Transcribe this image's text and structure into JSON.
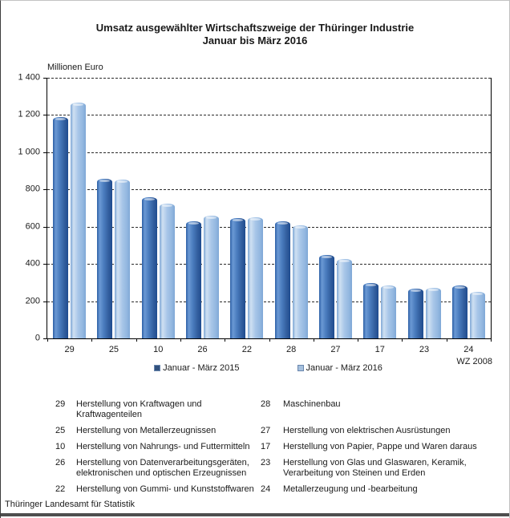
{
  "title": {
    "line1": "Umsatz ausgewählter Wirtschaftszweige der Thüringer Industrie",
    "line2": "Januar bis März 2016"
  },
  "chart_data": {
    "type": "bar",
    "title": "Umsatz ausgewählter Wirtschaftszweige der Thüringer Industrie Januar bis März 2016",
    "ylabel": "Millionen Euro",
    "axis_note": "WZ 2008",
    "categories": [
      "29",
      "25",
      "10",
      "26",
      "22",
      "28",
      "27",
      "17",
      "23",
      "24"
    ],
    "series": [
      {
        "name": "Januar - März 2015",
        "color": "#31517e",
        "values": [
          1190,
          858,
          757,
          627,
          646,
          630,
          450,
          297,
          268,
          283
        ]
      },
      {
        "name": "Januar - März 2016",
        "color": "#a6c1de",
        "values": [
          1268,
          851,
          724,
          657,
          652,
          608,
          426,
          283,
          271,
          249
        ]
      }
    ],
    "ylim": [
      0,
      1400
    ],
    "ytick_step": 200,
    "ytick_labels": [
      "0",
      "200",
      "400",
      "600",
      "800",
      "1 000",
      "1 200",
      "1 400"
    ],
    "grid": "dashed horizontal",
    "legend_position": "bottom center"
  },
  "category_legend": {
    "rows": [
      {
        "left": {
          "code": "29",
          "label": "Herstellung von Kraftwagen und Kraftwagenteilen"
        },
        "right": {
          "code": "28",
          "label": "Maschinenbau"
        }
      },
      {
        "left": {
          "code": "25",
          "label": "Herstellung von Metallerzeugnissen"
        },
        "right": {
          "code": "27",
          "label": "Herstellung von elektrischen Ausrüstungen"
        }
      },
      {
        "left": {
          "code": "10",
          "label": "Herstellung von Nahrungs- und Futtermitteln"
        },
        "right": {
          "code": "17",
          "label": "Herstellung von Papier, Pappe und Waren daraus"
        }
      },
      {
        "left": {
          "code": "26",
          "label": "Herstellung von Datenverarbeitungsgeräten, elektronischen und optischen Erzeugnissen"
        },
        "right": {
          "code": "23",
          "label": "Herstellung von Glas und Glaswaren, Keramik, Verarbeitung von Steinen und Erden"
        }
      },
      {
        "left": {
          "code": "22",
          "label": "Herstellung von Gummi- und  Kunststoffwaren"
        },
        "right": {
          "code": "24",
          "label": "Metallerzeugung und -bearbeitung"
        }
      }
    ]
  },
  "footer": "Thüringer Landesamt für Statistik"
}
